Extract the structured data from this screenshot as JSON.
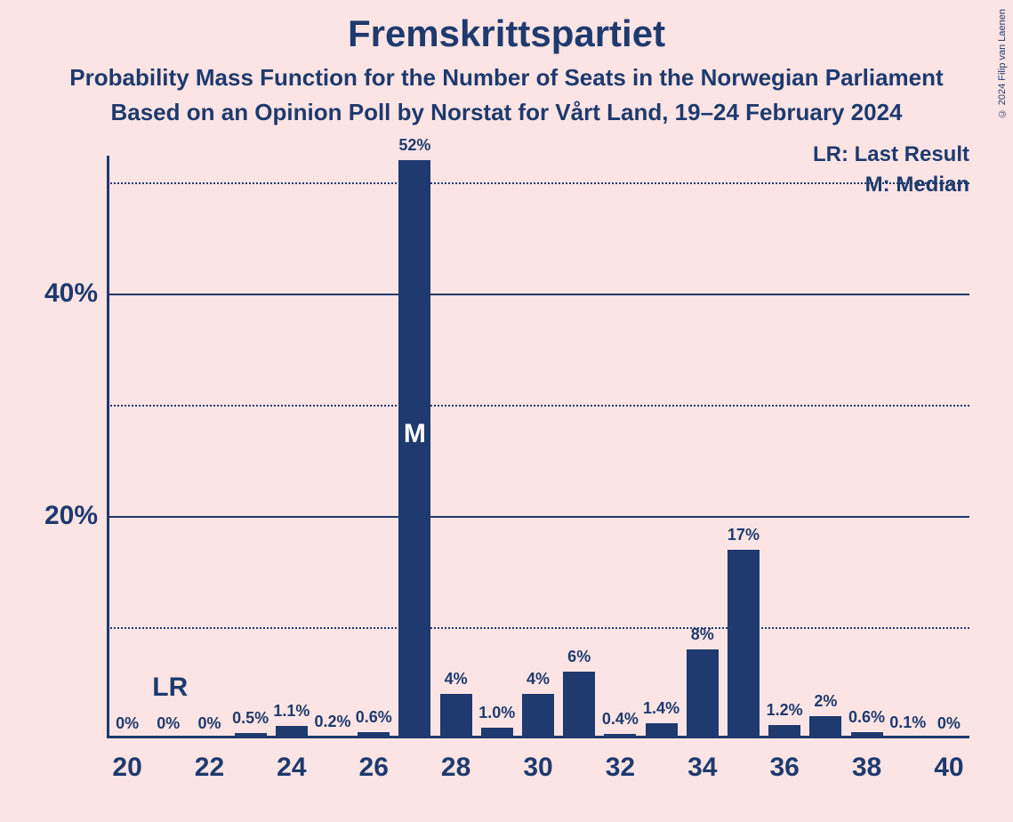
{
  "chart": {
    "type": "bar",
    "title": "Fremskrittspartiet",
    "subtitle1": "Probability Mass Function for the Number of Seats in the Norwegian Parliament",
    "subtitle2": "Based on an Opinion Poll by Norstat for Vårt Land, 19–24 February 2024",
    "copyright": "© 2024 Filip van Laenen",
    "background_color": "#fce4e4",
    "bar_color": "#1e3a6e",
    "text_color": "#1e3a6e",
    "x_categories": [
      20,
      21,
      22,
      23,
      24,
      25,
      26,
      27,
      28,
      29,
      30,
      31,
      32,
      33,
      34,
      35,
      36,
      37,
      38,
      39,
      40
    ],
    "x_tick_labels": [
      "20",
      "22",
      "24",
      "26",
      "28",
      "30",
      "32",
      "34",
      "36",
      "38",
      "40"
    ],
    "x_tick_positions": [
      20,
      22,
      24,
      26,
      28,
      30,
      32,
      34,
      36,
      38,
      40
    ],
    "values": [
      0,
      0,
      0,
      0.5,
      1.1,
      0.2,
      0.6,
      52,
      4,
      1.0,
      4,
      6,
      0.4,
      1.4,
      8,
      17,
      1.2,
      2,
      0.6,
      0.1,
      0
    ],
    "value_labels": [
      "0%",
      "0%",
      "0%",
      "0.5%",
      "1.1%",
      "0.2%",
      "0.6%",
      "52%",
      "4%",
      "1.0%",
      "4%",
      "6%",
      "0.4%",
      "1.4%",
      "8%",
      "17%",
      "1.2%",
      "2%",
      "0.6%",
      "0.1%",
      "0%"
    ],
    "y_ticks_major": [
      20,
      40
    ],
    "y_ticks_minor": [
      10,
      30,
      50
    ],
    "y_tick_labels": [
      "20%",
      "40%"
    ],
    "ylim": [
      0,
      52
    ],
    "bar_width_ratio": 0.78,
    "median_index": 7,
    "median_label": "M",
    "last_result_index": 1,
    "last_result_label": "LR",
    "legend_lr": "LR: Last Result",
    "legend_m": "M: Median",
    "title_fontsize": 42,
    "subtitle_fontsize": 26,
    "axis_label_fontsize": 30,
    "bar_label_fontsize": 18,
    "legend_fontsize": 24
  }
}
